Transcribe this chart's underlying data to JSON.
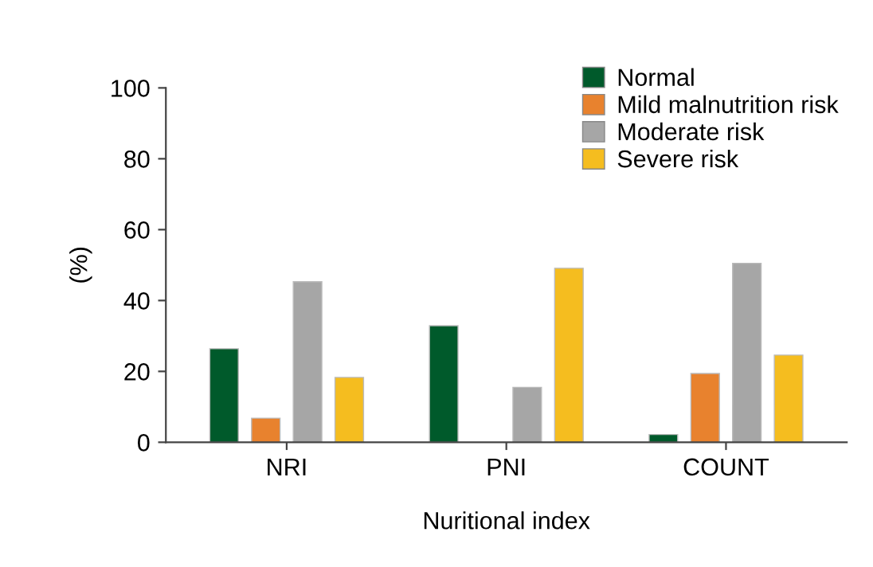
{
  "chart_data": {
    "type": "bar",
    "xlabel": "Nuritional index",
    "ylabel": "(%)",
    "categories": [
      "NRI",
      "PNI",
      "COUNT"
    ],
    "series": [
      {
        "name": "Normal",
        "color": "#005a2b",
        "values": [
          26.4,
          32.9,
          2.2
        ]
      },
      {
        "name": "Mild malnutrition risk",
        "color": "#e8822e",
        "values": [
          6.8,
          null,
          19.4
        ]
      },
      {
        "name": "Moderate risk",
        "color": "#a6a6a6",
        "values": [
          45.3,
          15.5,
          50.5
        ]
      },
      {
        "name": "Severe risk",
        "color": "#f5bd1f",
        "values": [
          18.3,
          49.1,
          24.6
        ]
      }
    ],
    "ylim": [
      0,
      100
    ],
    "yticks": [
      0,
      20,
      40,
      60,
      80,
      100
    ],
    "grid": false,
    "legend": "top right"
  }
}
